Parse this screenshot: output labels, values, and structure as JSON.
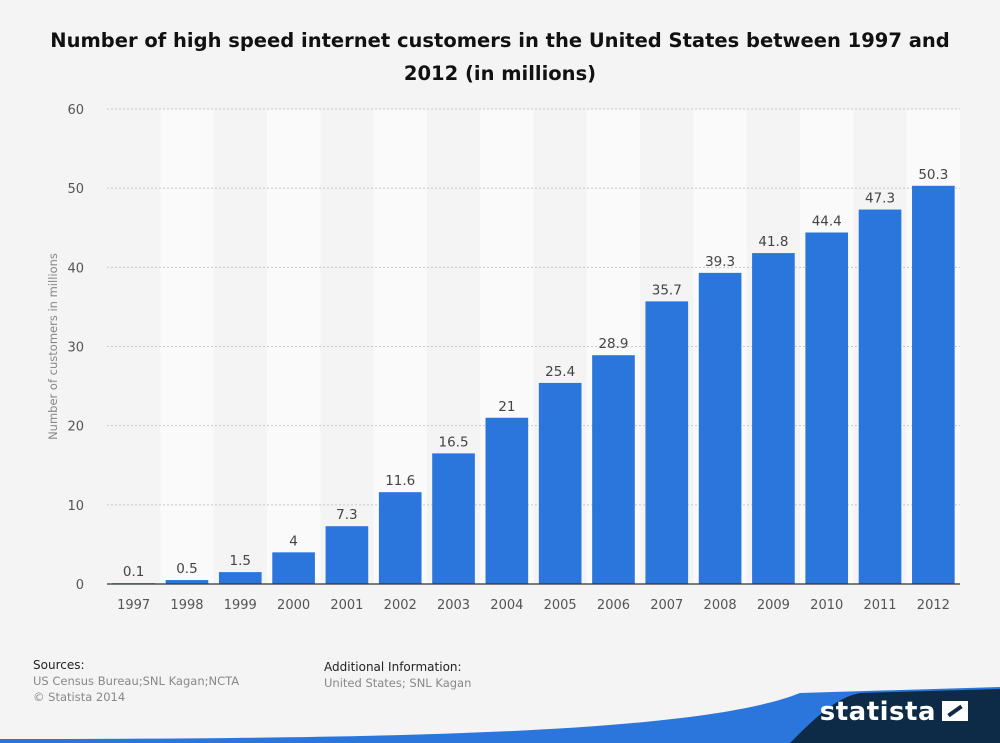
{
  "title": "Number of high speed internet customers in the United States between 1997 and 2012 (in millions)",
  "chart_data": {
    "type": "bar",
    "title": "Number of high speed internet customers in the United States between 1997 and 2012 (in millions)",
    "xlabel": "",
    "ylabel": "Number of customers in millions",
    "categories": [
      "1997",
      "1998",
      "1999",
      "2000",
      "2001",
      "2002",
      "2003",
      "2004",
      "2005",
      "2006",
      "2007",
      "2008",
      "2009",
      "2010",
      "2011",
      "2012"
    ],
    "values": [
      0.1,
      0.5,
      1.5,
      4,
      7.3,
      11.6,
      16.5,
      21,
      25.4,
      28.9,
      35.7,
      39.3,
      41.8,
      44.4,
      47.3,
      50.3
    ],
    "data_labels": [
      "0.1",
      "0.5",
      "1.5",
      "4",
      "7.3",
      "11.6",
      "16.5",
      "21",
      "25.4",
      "28.9",
      "35.7",
      "39.3",
      "41.8",
      "44.4",
      "47.3",
      "50.3"
    ],
    "ylim": [
      0,
      60
    ],
    "yticks": [
      0,
      10,
      20,
      30,
      40,
      50,
      60
    ],
    "grid": true,
    "legend": "none",
    "bar_color": "#2a76dd"
  },
  "footer": {
    "sources_heading": "Sources:",
    "sources_line1": "US Census Bureau;SNL Kagan;NCTA",
    "sources_line2": "© Statista 2014",
    "additional_heading": "Additional Information:",
    "additional_text": "United States; SNL Kagan"
  },
  "brand": {
    "name": "statista",
    "icon": "statista-logo-icon",
    "band_color": "#0d2a47",
    "accent_color": "#2a76dd"
  }
}
